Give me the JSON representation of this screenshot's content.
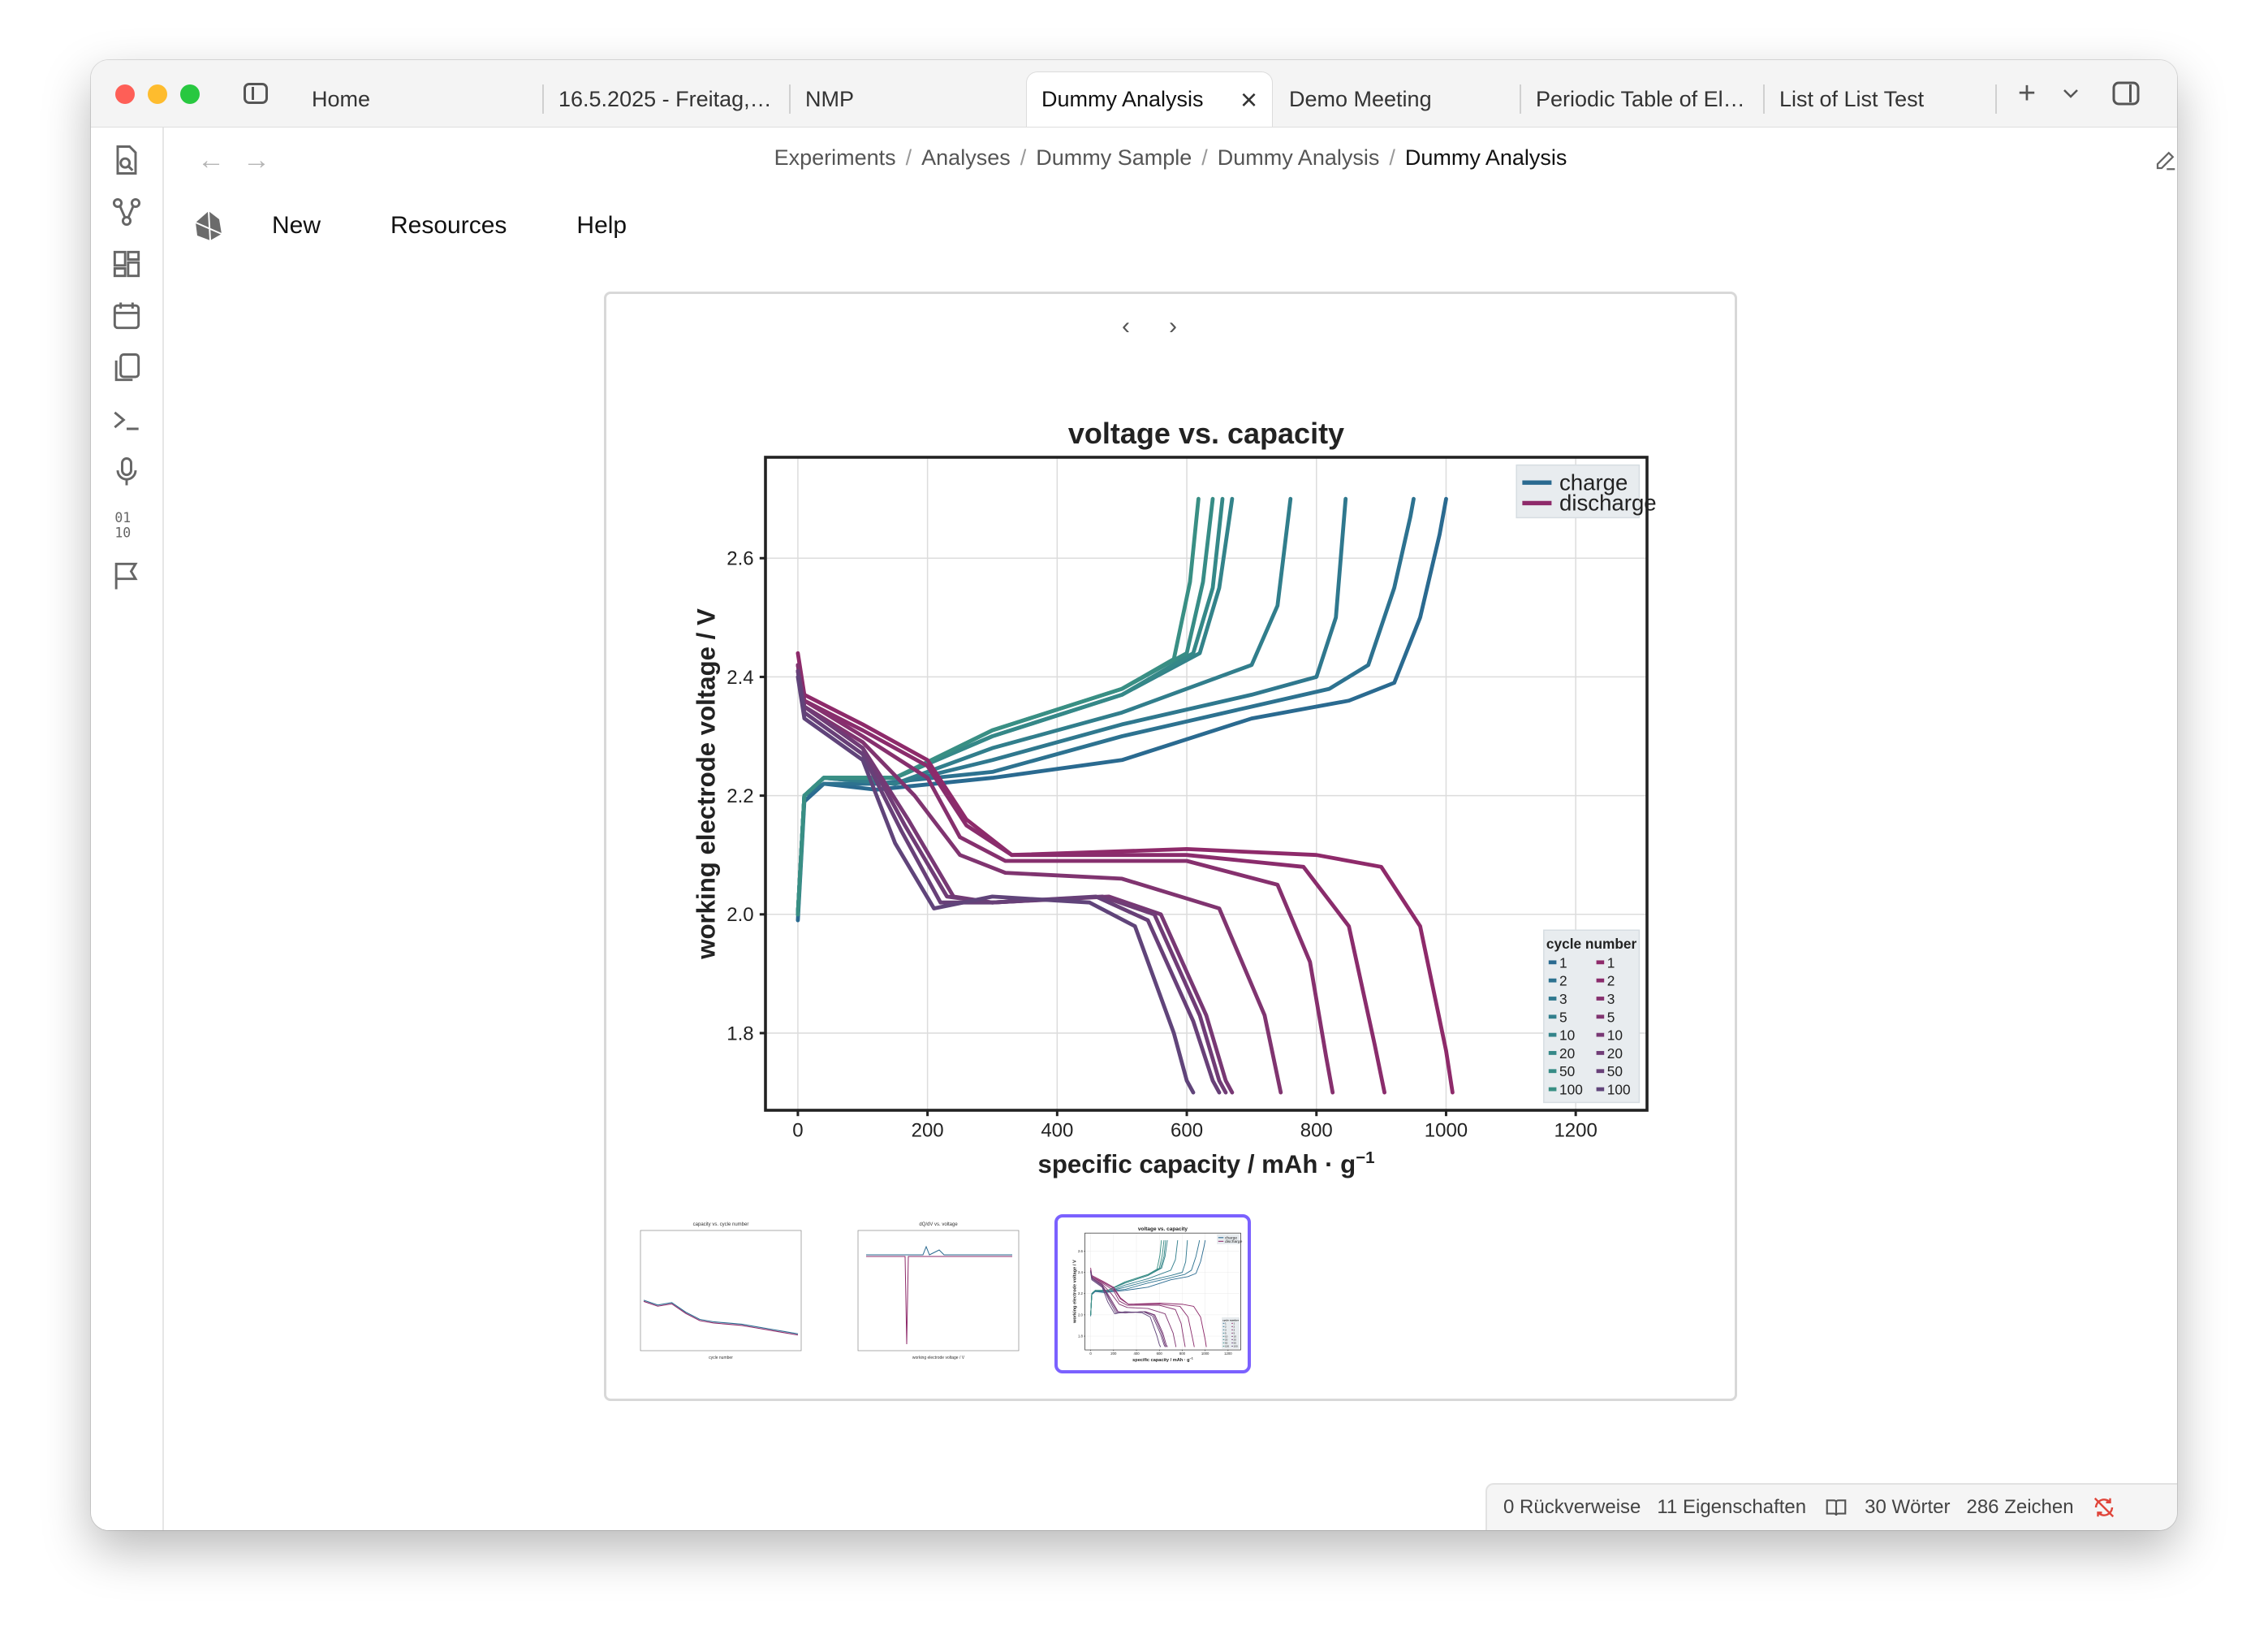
{
  "tabs": [
    {
      "label": "Home"
    },
    {
      "label": "16.5.2025 - Freitag, ..."
    },
    {
      "label": "NMP"
    },
    {
      "label": "Dummy Analysis"
    },
    {
      "label": "Demo Meeting"
    },
    {
      "label": "Periodic Table of Ele..."
    },
    {
      "label": "List of List Test"
    }
  ],
  "active_tab_index": 3,
  "breadcrumb": [
    "Experiments",
    "Analyses",
    "Dummy Sample",
    "Dummy Analysis",
    "Dummy Analysis"
  ],
  "menu": {
    "new": "New",
    "resources": "Resources",
    "help": "Help"
  },
  "ribbon_icons": [
    "file-search-icon",
    "graph-icon",
    "grid-icon",
    "calendar-icon",
    "copy-icon",
    "terminal-icon",
    "microphone-icon",
    "binary-icon",
    "flag-icon"
  ],
  "status": {
    "backlinks": "0 Rückverweise",
    "properties": "11 Eigenschaften",
    "words": "30 Wörter",
    "chars": "286 Zeichen"
  },
  "colors": {
    "accent": "#7b61ff",
    "charge": "#2d6e8e",
    "discharge": "#8e2a6a"
  },
  "chart_data": {
    "type": "line",
    "title": "voltage vs. capacity",
    "xlabel": "specific capacity / mAh · g",
    "xlabel_superscript": "−1",
    "ylabel": "working electrode voltage / V",
    "xlim": [
      -50,
      1310
    ],
    "ylim": [
      1.67,
      2.77
    ],
    "xticks": [
      0,
      200,
      400,
      600,
      800,
      1000,
      1200
    ],
    "yticks": [
      1.8,
      2.0,
      2.2,
      2.4,
      2.6
    ],
    "grid": true,
    "legend": {
      "position": "top-right",
      "entries": [
        "charge",
        "discharge"
      ]
    },
    "cycle_legend": {
      "title": "cycle number",
      "position": "bottom-right",
      "cycles": [
        "1",
        "2",
        "3",
        "5",
        "10",
        "20",
        "50",
        "100"
      ]
    },
    "series": [
      {
        "group": "charge",
        "color": "#2a6a90",
        "x": [
          0,
          10,
          40,
          120,
          300,
          500,
          700,
          850,
          920,
          960,
          990,
          1000
        ],
        "y": [
          1.99,
          2.19,
          2.22,
          2.21,
          2.23,
          2.26,
          2.33,
          2.36,
          2.39,
          2.5,
          2.64,
          2.7
        ]
      },
      {
        "group": "charge",
        "color": "#2d7290",
        "x": [
          0,
          10,
          40,
          120,
          300,
          500,
          700,
          820,
          880,
          920,
          945,
          950
        ],
        "y": [
          2.0,
          2.2,
          2.22,
          2.22,
          2.24,
          2.3,
          2.35,
          2.38,
          2.42,
          2.55,
          2.67,
          2.7
        ]
      },
      {
        "group": "charge",
        "color": "#2f788e",
        "x": [
          0,
          10,
          40,
          150,
          300,
          500,
          700,
          800,
          830,
          845
        ],
        "y": [
          2.0,
          2.2,
          2.23,
          2.22,
          2.26,
          2.32,
          2.37,
          2.4,
          2.5,
          2.7
        ]
      },
      {
        "group": "charge",
        "color": "#317e8c",
        "x": [
          0,
          10,
          40,
          150,
          300,
          500,
          700,
          740,
          760
        ],
        "y": [
          2.0,
          2.2,
          2.23,
          2.22,
          2.28,
          2.34,
          2.42,
          2.52,
          2.7
        ]
      },
      {
        "group": "charge",
        "color": "#33838a",
        "x": [
          0,
          10,
          40,
          150,
          300,
          500,
          620,
          650,
          670
        ],
        "y": [
          2.0,
          2.2,
          2.23,
          2.23,
          2.3,
          2.37,
          2.44,
          2.55,
          2.7
        ]
      },
      {
        "group": "charge",
        "color": "#358888",
        "x": [
          0,
          10,
          40,
          150,
          300,
          500,
          610,
          640,
          655
        ],
        "y": [
          2.0,
          2.2,
          2.23,
          2.23,
          2.3,
          2.37,
          2.44,
          2.55,
          2.7
        ]
      },
      {
        "group": "charge",
        "color": "#378c86",
        "x": [
          0,
          10,
          40,
          150,
          300,
          500,
          600,
          625,
          640
        ],
        "y": [
          2.0,
          2.2,
          2.23,
          2.23,
          2.31,
          2.38,
          2.44,
          2.56,
          2.7
        ]
      },
      {
        "group": "charge",
        "color": "#398f84",
        "x": [
          0,
          10,
          40,
          150,
          300,
          500,
          580,
          605,
          618
        ],
        "y": [
          2.0,
          2.2,
          2.23,
          2.23,
          2.31,
          2.38,
          2.43,
          2.56,
          2.7
        ]
      },
      {
        "group": "discharge",
        "color": "#8e2a6a",
        "x": [
          0,
          10,
          100,
          200,
          260,
          330,
          600,
          800,
          900,
          960,
          1000,
          1010
        ],
        "y": [
          2.44,
          2.37,
          2.32,
          2.26,
          2.16,
          2.1,
          2.11,
          2.1,
          2.08,
          1.98,
          1.77,
          1.7
        ]
      },
      {
        "group": "discharge",
        "color": "#8a2c6c",
        "x": [
          0,
          10,
          100,
          200,
          260,
          330,
          600,
          780,
          850,
          890,
          905
        ],
        "y": [
          2.42,
          2.36,
          2.31,
          2.25,
          2.15,
          2.1,
          2.1,
          2.08,
          1.98,
          1.78,
          1.7
        ]
      },
      {
        "group": "discharge",
        "color": "#86306e",
        "x": [
          0,
          10,
          100,
          200,
          250,
          320,
          600,
          740,
          790,
          815,
          825
        ],
        "y": [
          2.42,
          2.36,
          2.3,
          2.23,
          2.13,
          2.09,
          2.09,
          2.05,
          1.92,
          1.76,
          1.7
        ]
      },
      {
        "group": "discharge",
        "color": "#803470",
        "x": [
          0,
          10,
          100,
          180,
          250,
          320,
          500,
          650,
          720,
          745
        ],
        "y": [
          2.42,
          2.35,
          2.29,
          2.2,
          2.1,
          2.07,
          2.06,
          2.01,
          1.83,
          1.7
        ]
      },
      {
        "group": "discharge",
        "color": "#783874",
        "x": [
          0,
          10,
          100,
          170,
          240,
          300,
          480,
          560,
          630,
          660,
          670
        ],
        "y": [
          2.41,
          2.35,
          2.28,
          2.16,
          2.03,
          2.02,
          2.03,
          2.0,
          1.83,
          1.72,
          1.7
        ]
      },
      {
        "group": "discharge",
        "color": "#703c76",
        "x": [
          0,
          10,
          100,
          165,
          230,
          300,
          470,
          550,
          620,
          650,
          660
        ],
        "y": [
          2.41,
          2.35,
          2.28,
          2.15,
          2.03,
          2.02,
          2.03,
          2.0,
          1.83,
          1.72,
          1.7
        ]
      },
      {
        "group": "discharge",
        "color": "#684078",
        "x": [
          0,
          10,
          100,
          160,
          220,
          300,
          460,
          540,
          610,
          640,
          650
        ],
        "y": [
          2.41,
          2.34,
          2.27,
          2.14,
          2.02,
          2.02,
          2.03,
          1.99,
          1.82,
          1.72,
          1.7
        ]
      },
      {
        "group": "discharge",
        "color": "#60447a",
        "x": [
          0,
          10,
          100,
          150,
          210,
          300,
          450,
          520,
          580,
          600,
          610
        ],
        "y": [
          2.4,
          2.33,
          2.26,
          2.12,
          2.01,
          2.03,
          2.02,
          1.98,
          1.8,
          1.72,
          1.7
        ]
      }
    ]
  },
  "thumbnails": [
    {
      "title": "capacity vs. cycle number",
      "xlabel": "cycle number",
      "selected": false
    },
    {
      "title": "dQ/dV vs. voltage",
      "xlabel": "working electrode voltage / V",
      "selected": false
    },
    {
      "title": "voltage vs. capacity",
      "xlabel": "specific capacity / mAh · g",
      "selected": true
    }
  ]
}
